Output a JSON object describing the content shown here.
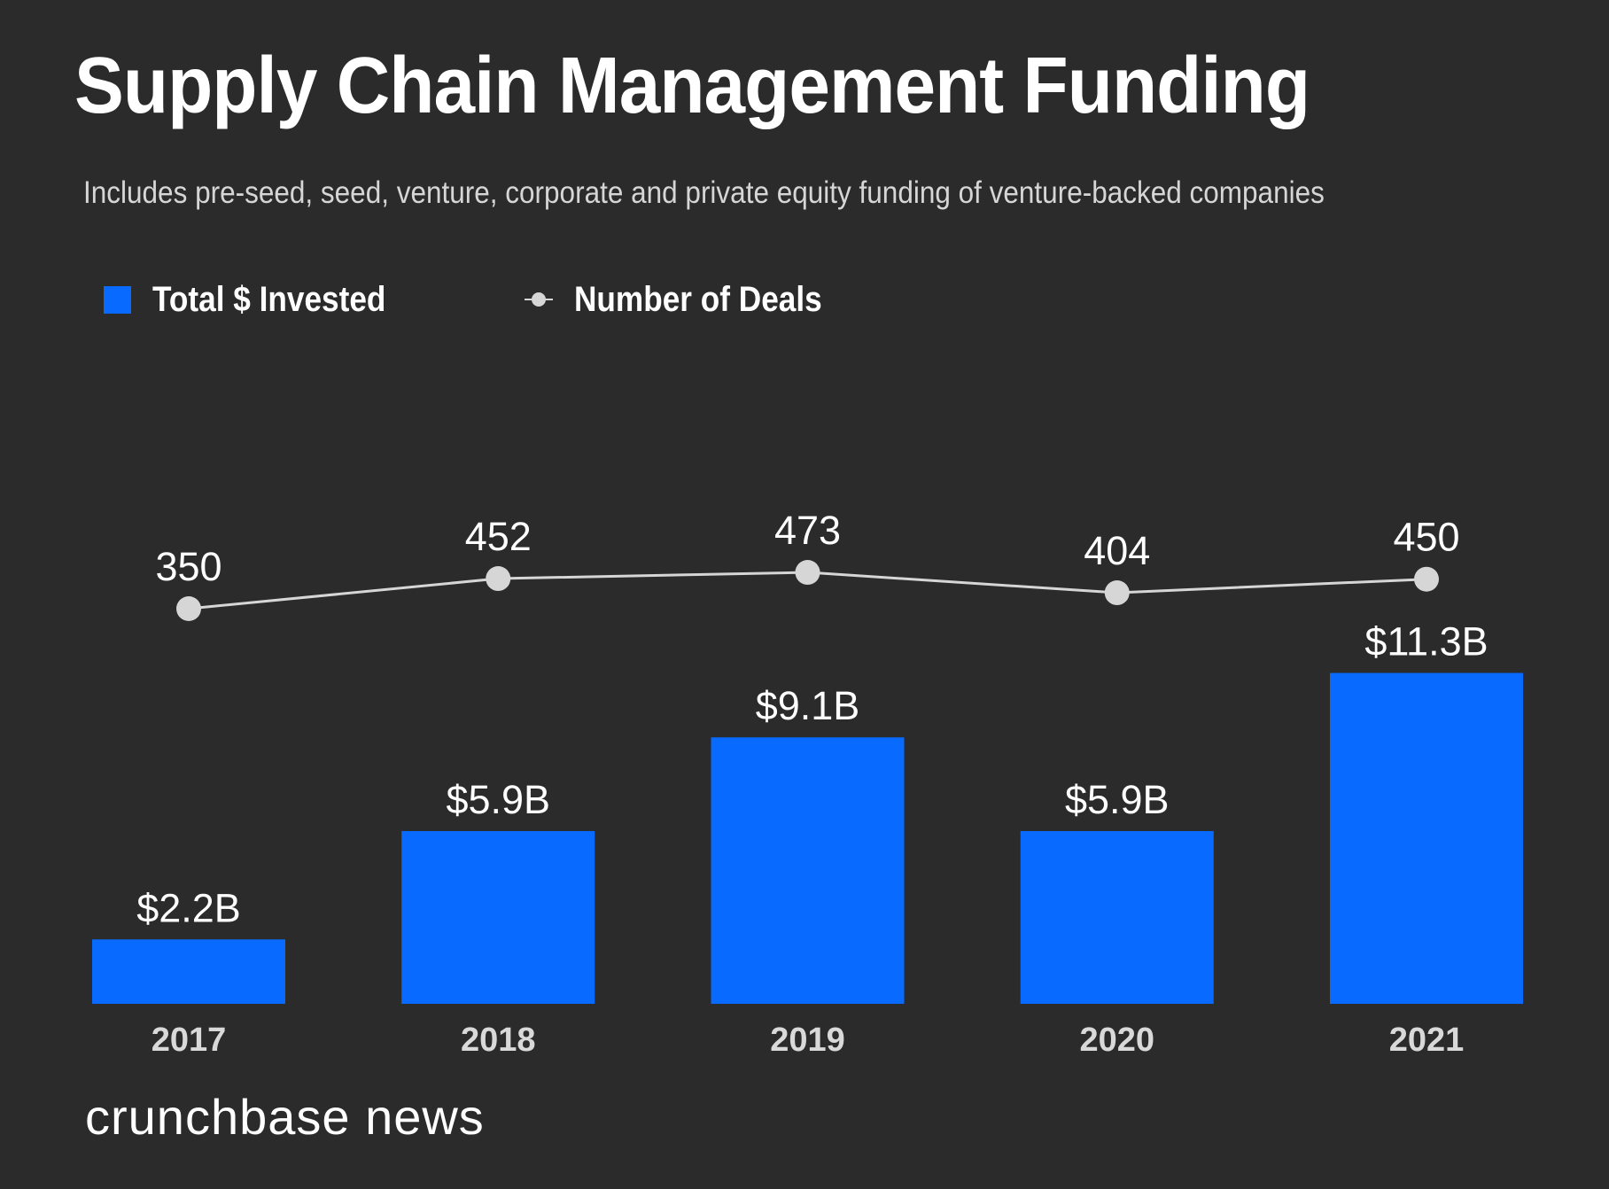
{
  "chart_data": {
    "type": "bar",
    "title": "Supply Chain Management Funding",
    "subtitle": "Includes pre-seed, seed, venture, corporate and private equity funding of venture-backed companies",
    "categories": [
      "2017",
      "2018",
      "2019",
      "2020",
      "2021"
    ],
    "series": [
      {
        "name": "Total $ Invested",
        "type": "bar",
        "unit": "USD billions",
        "values": [
          2.2,
          5.9,
          9.1,
          5.9,
          11.3
        ],
        "labels": [
          "$2.2B",
          "$5.9B",
          "$9.1B",
          "$5.9B",
          "$11.3B"
        ],
        "color": "#086afe"
      },
      {
        "name": "Number of Deals",
        "type": "line",
        "values": [
          350,
          452,
          473,
          404,
          450
        ],
        "labels": [
          "350",
          "452",
          "473",
          "404",
          "450"
        ],
        "color": "#d6d6d6"
      }
    ],
    "xlabel": "",
    "ylabel": "",
    "grid": false,
    "legend": "top-left"
  },
  "legend": {
    "items": [
      {
        "label": "Total $ Invested",
        "icon": "square-swatch-icon",
        "color": "#086afe"
      },
      {
        "label": "Number of Deals",
        "icon": "line-dot-swatch-icon",
        "color": "#d6d6d6"
      }
    ]
  },
  "footer": {
    "logo": "crunchbase news"
  },
  "colors": {
    "background": "#2b2b2b",
    "text": "#ffffff",
    "axis_text": "#d9d9d9"
  }
}
